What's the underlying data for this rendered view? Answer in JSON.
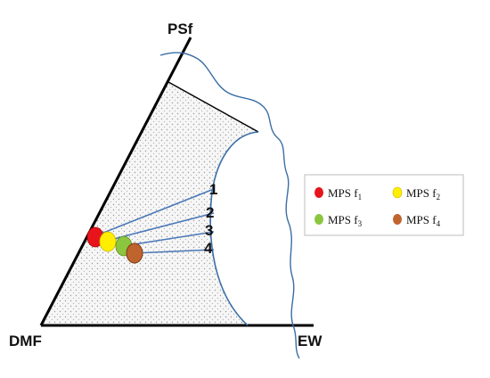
{
  "vertices": {
    "top": "PSf",
    "left": "DMF",
    "right": "EW"
  },
  "tie_lines": [
    {
      "label": "1",
      "color": "#e8141c"
    },
    {
      "label": "2",
      "color": "#ffee00"
    },
    {
      "label": "3",
      "color": "#8cc63f"
    },
    {
      "label": "4",
      "color": "#c0642e"
    }
  ],
  "legend": [
    {
      "text": "MPS f",
      "sub": "1",
      "color": "#e8141c"
    },
    {
      "text": "MPS f",
      "sub": "2",
      "color": "#ffee00"
    },
    {
      "text": "MPS f",
      "sub": "3",
      "color": "#8cc63f"
    },
    {
      "text": "MPS f",
      "sub": "4",
      "color": "#c0642e"
    }
  ],
  "colors": {
    "triangle": "#000000",
    "binodal": "#3a6ea5",
    "tie_line": "#4a78b8",
    "region_fill": "#f2f2f2"
  }
}
